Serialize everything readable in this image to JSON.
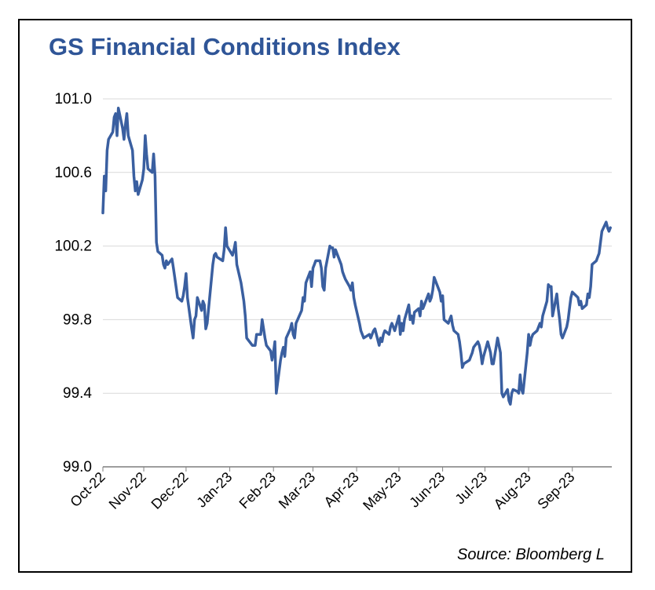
{
  "chart_data": {
    "type": "line",
    "title": "GS Financial Conditions Index",
    "source": "Source: Bloomberg L",
    "xlabel": "",
    "ylabel": "",
    "ylim": [
      99.0,
      101.0
    ],
    "yticks": [
      "99.0",
      "99.4",
      "99.8",
      "100.2",
      "100.6",
      "101.0"
    ],
    "grid": true,
    "legend": "none",
    "line_color": "#3a5fa0",
    "x_ticks": [
      "Oct-22",
      "Nov-22",
      "Dec-22",
      "Jan-23",
      "Feb-23",
      "Mar-23",
      "Apr-23",
      "May-23",
      "Jun-23",
      "Jul-23",
      "Aug-23",
      "Sep-23"
    ],
    "series": [
      {
        "values": [
          [
            "2022-10-03",
            100.38
          ],
          [
            "2022-10-04",
            100.58
          ],
          [
            "2022-10-05",
            100.5
          ],
          [
            "2022-10-06",
            100.72
          ],
          [
            "2022-10-07",
            100.78
          ],
          [
            "2022-10-10",
            100.82
          ],
          [
            "2022-10-11",
            100.9
          ],
          [
            "2022-10-12",
            100.92
          ],
          [
            "2022-10-13",
            100.8
          ],
          [
            "2022-10-14",
            100.95
          ],
          [
            "2022-10-17",
            100.84
          ],
          [
            "2022-10-18",
            100.78
          ],
          [
            "2022-10-19",
            100.86
          ],
          [
            "2022-10-20",
            100.92
          ],
          [
            "2022-10-21",
            100.8
          ],
          [
            "2022-10-24",
            100.72
          ],
          [
            "2022-10-25",
            100.58
          ],
          [
            "2022-10-26",
            100.5
          ],
          [
            "2022-10-27",
            100.55
          ],
          [
            "2022-10-28",
            100.48
          ],
          [
            "2022-10-31",
            100.56
          ],
          [
            "2022-11-01",
            100.62
          ],
          [
            "2022-11-02",
            100.8
          ],
          [
            "2022-11-03",
            100.7
          ],
          [
            "2022-11-04",
            100.62
          ],
          [
            "2022-11-07",
            100.6
          ],
          [
            "2022-11-08",
            100.7
          ],
          [
            "2022-11-09",
            100.58
          ],
          [
            "2022-11-10",
            100.22
          ],
          [
            "2022-11-11",
            100.17
          ],
          [
            "2022-11-14",
            100.15
          ],
          [
            "2022-11-15",
            100.1
          ],
          [
            "2022-11-16",
            100.08
          ],
          [
            "2022-11-17",
            100.12
          ],
          [
            "2022-11-18",
            100.1
          ],
          [
            "2022-11-21",
            100.13
          ],
          [
            "2022-11-22",
            100.08
          ],
          [
            "2022-11-23",
            100.03
          ],
          [
            "2022-11-25",
            99.92
          ],
          [
            "2022-11-28",
            99.9
          ],
          [
            "2022-11-29",
            99.93
          ],
          [
            "2022-11-30",
            99.98
          ],
          [
            "2022-12-01",
            100.05
          ],
          [
            "2022-12-02",
            99.92
          ],
          [
            "2022-12-05",
            99.75
          ],
          [
            "2022-12-06",
            99.7
          ],
          [
            "2022-12-07",
            99.8
          ],
          [
            "2022-12-08",
            99.82
          ],
          [
            "2022-12-09",
            99.92
          ],
          [
            "2022-12-12",
            99.85
          ],
          [
            "2022-12-13",
            99.9
          ],
          [
            "2022-12-14",
            99.88
          ],
          [
            "2022-12-15",
            99.75
          ],
          [
            "2022-12-16",
            99.78
          ],
          [
            "2022-12-19",
            100.02
          ],
          [
            "2022-12-20",
            100.1
          ],
          [
            "2022-12-21",
            100.15
          ],
          [
            "2022-12-22",
            100.16
          ],
          [
            "2022-12-23",
            100.14
          ],
          [
            "2022-12-27",
            100.12
          ],
          [
            "2022-12-28",
            100.18
          ],
          [
            "2022-12-29",
            100.3
          ],
          [
            "2022-12-30",
            100.2
          ],
          [
            "2023-01-03",
            100.15
          ],
          [
            "2023-01-04",
            100.18
          ],
          [
            "2023-01-05",
            100.22
          ],
          [
            "2023-01-06",
            100.1
          ],
          [
            "2023-01-09",
            100.0
          ],
          [
            "2023-01-10",
            99.95
          ],
          [
            "2023-01-11",
            99.9
          ],
          [
            "2023-01-12",
            99.82
          ],
          [
            "2023-01-13",
            99.7
          ],
          [
            "2023-01-17",
            99.66
          ],
          [
            "2023-01-18",
            99.66
          ],
          [
            "2023-01-19",
            99.66
          ],
          [
            "2023-01-20",
            99.72
          ],
          [
            "2023-01-23",
            99.72
          ],
          [
            "2023-01-24",
            99.8
          ],
          [
            "2023-01-25",
            99.75
          ],
          [
            "2023-01-26",
            99.7
          ],
          [
            "2023-01-27",
            99.66
          ],
          [
            "2023-01-30",
            99.63
          ],
          [
            "2023-01-31",
            99.58
          ],
          [
            "2023-02-01",
            99.62
          ],
          [
            "2023-02-02",
            99.68
          ],
          [
            "2023-02-03",
            99.4
          ],
          [
            "2023-02-06",
            99.58
          ],
          [
            "2023-02-07",
            99.62
          ],
          [
            "2023-02-08",
            99.65
          ],
          [
            "2023-02-09",
            99.6
          ],
          [
            "2023-02-10",
            99.7
          ],
          [
            "2023-02-13",
            99.75
          ],
          [
            "2023-02-14",
            99.78
          ],
          [
            "2023-02-15",
            99.72
          ],
          [
            "2023-02-16",
            99.7
          ],
          [
            "2023-02-17",
            99.78
          ],
          [
            "2023-02-21",
            99.85
          ],
          [
            "2023-02-22",
            99.92
          ],
          [
            "2023-02-23",
            99.9
          ],
          [
            "2023-02-24",
            100.0
          ],
          [
            "2023-02-27",
            100.06
          ],
          [
            "2023-02-28",
            99.98
          ],
          [
            "2023-03-01",
            100.08
          ],
          [
            "2023-03-02",
            100.1
          ],
          [
            "2023-03-03",
            100.12
          ],
          [
            "2023-03-06",
            100.12
          ],
          [
            "2023-03-07",
            100.08
          ],
          [
            "2023-03-08",
            99.98
          ],
          [
            "2023-03-09",
            99.96
          ],
          [
            "2023-03-10",
            100.08
          ],
          [
            "2023-03-13",
            100.2
          ],
          [
            "2023-03-14",
            100.19
          ],
          [
            "2023-03-15",
            100.19
          ],
          [
            "2023-03-16",
            100.14
          ],
          [
            "2023-03-17",
            100.18
          ],
          [
            "2023-03-20",
            100.12
          ],
          [
            "2023-03-21",
            100.1
          ],
          [
            "2023-03-22",
            100.06
          ],
          [
            "2023-03-23",
            100.04
          ],
          [
            "2023-03-24",
            100.02
          ],
          [
            "2023-03-27",
            99.98
          ],
          [
            "2023-03-28",
            99.96
          ],
          [
            "2023-03-29",
            100.0
          ],
          [
            "2023-03-30",
            99.92
          ],
          [
            "2023-03-31",
            99.88
          ],
          [
            "2023-04-03",
            99.78
          ],
          [
            "2023-04-04",
            99.74
          ],
          [
            "2023-04-05",
            99.72
          ],
          [
            "2023-04-06",
            99.7
          ],
          [
            "2023-04-10",
            99.72
          ],
          [
            "2023-04-11",
            99.7
          ],
          [
            "2023-04-12",
            99.72
          ],
          [
            "2023-04-13",
            99.74
          ],
          [
            "2023-04-14",
            99.75
          ],
          [
            "2023-04-17",
            99.66
          ],
          [
            "2023-04-18",
            99.7
          ],
          [
            "2023-04-19",
            99.68
          ],
          [
            "2023-04-20",
            99.72
          ],
          [
            "2023-04-21",
            99.74
          ],
          [
            "2023-04-24",
            99.72
          ],
          [
            "2023-04-25",
            99.76
          ],
          [
            "2023-04-26",
            99.78
          ],
          [
            "2023-04-27",
            99.76
          ],
          [
            "2023-04-28",
            99.74
          ],
          [
            "2023-05-01",
            99.82
          ],
          [
            "2023-05-02",
            99.72
          ],
          [
            "2023-05-03",
            99.78
          ],
          [
            "2023-05-04",
            99.74
          ],
          [
            "2023-05-05",
            99.8
          ],
          [
            "2023-05-08",
            99.88
          ],
          [
            "2023-05-09",
            99.8
          ],
          [
            "2023-05-10",
            99.82
          ],
          [
            "2023-05-11",
            99.78
          ],
          [
            "2023-05-12",
            99.84
          ],
          [
            "2023-05-15",
            99.86
          ],
          [
            "2023-05-16",
            99.82
          ],
          [
            "2023-05-17",
            99.9
          ],
          [
            "2023-05-18",
            99.86
          ],
          [
            "2023-05-19",
            99.88
          ],
          [
            "2023-05-22",
            99.94
          ],
          [
            "2023-05-23",
            99.9
          ],
          [
            "2023-05-24",
            99.92
          ],
          [
            "2023-05-25",
            99.96
          ],
          [
            "2023-05-26",
            100.03
          ],
          [
            "2023-05-30",
            99.95
          ],
          [
            "2023-05-31",
            99.9
          ],
          [
            "2023-06-01",
            99.93
          ],
          [
            "2023-06-02",
            99.8
          ],
          [
            "2023-06-05",
            99.78
          ],
          [
            "2023-06-06",
            99.8
          ],
          [
            "2023-06-07",
            99.82
          ],
          [
            "2023-06-08",
            99.77
          ],
          [
            "2023-06-09",
            99.74
          ],
          [
            "2023-06-12",
            99.72
          ],
          [
            "2023-06-13",
            99.68
          ],
          [
            "2023-06-14",
            99.62
          ],
          [
            "2023-06-15",
            99.54
          ],
          [
            "2023-06-16",
            99.56
          ],
          [
            "2023-06-20",
            99.58
          ],
          [
            "2023-06-21",
            99.6
          ],
          [
            "2023-06-22",
            99.62
          ],
          [
            "2023-06-23",
            99.65
          ],
          [
            "2023-06-26",
            99.68
          ],
          [
            "2023-06-27",
            99.66
          ],
          [
            "2023-06-28",
            99.62
          ],
          [
            "2023-06-29",
            99.56
          ],
          [
            "2023-06-30",
            99.6
          ],
          [
            "2023-07-03",
            99.68
          ],
          [
            "2023-07-05",
            99.62
          ],
          [
            "2023-07-06",
            99.56
          ],
          [
            "2023-07-07",
            99.56
          ],
          [
            "2023-07-10",
            99.7
          ],
          [
            "2023-07-11",
            99.66
          ],
          [
            "2023-07-12",
            99.62
          ],
          [
            "2023-07-13",
            99.4
          ],
          [
            "2023-07-14",
            99.38
          ],
          [
            "2023-07-17",
            99.42
          ],
          [
            "2023-07-18",
            99.36
          ],
          [
            "2023-07-19",
            99.34
          ],
          [
            "2023-07-20",
            99.4
          ],
          [
            "2023-07-21",
            99.42
          ],
          [
            "2023-07-24",
            99.41
          ],
          [
            "2023-07-25",
            99.4
          ],
          [
            "2023-07-26",
            99.5
          ],
          [
            "2023-07-27",
            99.42
          ],
          [
            "2023-07-28",
            99.4
          ],
          [
            "2023-07-31",
            99.62
          ],
          [
            "2023-08-01",
            99.72
          ],
          [
            "2023-08-02",
            99.66
          ],
          [
            "2023-08-03",
            99.7
          ],
          [
            "2023-08-04",
            99.72
          ],
          [
            "2023-08-07",
            99.74
          ],
          [
            "2023-08-08",
            99.76
          ],
          [
            "2023-08-09",
            99.78
          ],
          [
            "2023-08-10",
            99.76
          ],
          [
            "2023-08-11",
            99.82
          ],
          [
            "2023-08-14",
            99.9
          ],
          [
            "2023-08-15",
            99.99
          ],
          [
            "2023-08-16",
            99.98
          ],
          [
            "2023-08-17",
            99.98
          ],
          [
            "2023-08-18",
            99.82
          ],
          [
            "2023-08-21",
            99.94
          ],
          [
            "2023-08-22",
            99.86
          ],
          [
            "2023-08-23",
            99.8
          ],
          [
            "2023-08-24",
            99.72
          ],
          [
            "2023-08-25",
            99.7
          ],
          [
            "2023-08-28",
            99.76
          ],
          [
            "2023-08-29",
            99.8
          ],
          [
            "2023-08-30",
            99.86
          ],
          [
            "2023-08-31",
            99.92
          ],
          [
            "2023-09-01",
            99.95
          ],
          [
            "2023-09-05",
            99.92
          ],
          [
            "2023-09-06",
            99.88
          ],
          [
            "2023-09-07",
            99.9
          ],
          [
            "2023-09-08",
            99.86
          ],
          [
            "2023-09-11",
            99.88
          ],
          [
            "2023-09-12",
            99.94
          ],
          [
            "2023-09-13",
            99.92
          ],
          [
            "2023-09-14",
            99.98
          ],
          [
            "2023-09-15",
            100.1
          ],
          [
            "2023-09-18",
            100.12
          ],
          [
            "2023-09-19",
            100.14
          ],
          [
            "2023-09-20",
            100.16
          ],
          [
            "2023-09-21",
            100.22
          ],
          [
            "2023-09-22",
            100.28
          ],
          [
            "2023-09-25",
            100.33
          ],
          [
            "2023-09-26",
            100.3
          ],
          [
            "2023-09-27",
            100.28
          ],
          [
            "2023-09-28",
            100.3
          ]
        ]
      }
    ]
  }
}
